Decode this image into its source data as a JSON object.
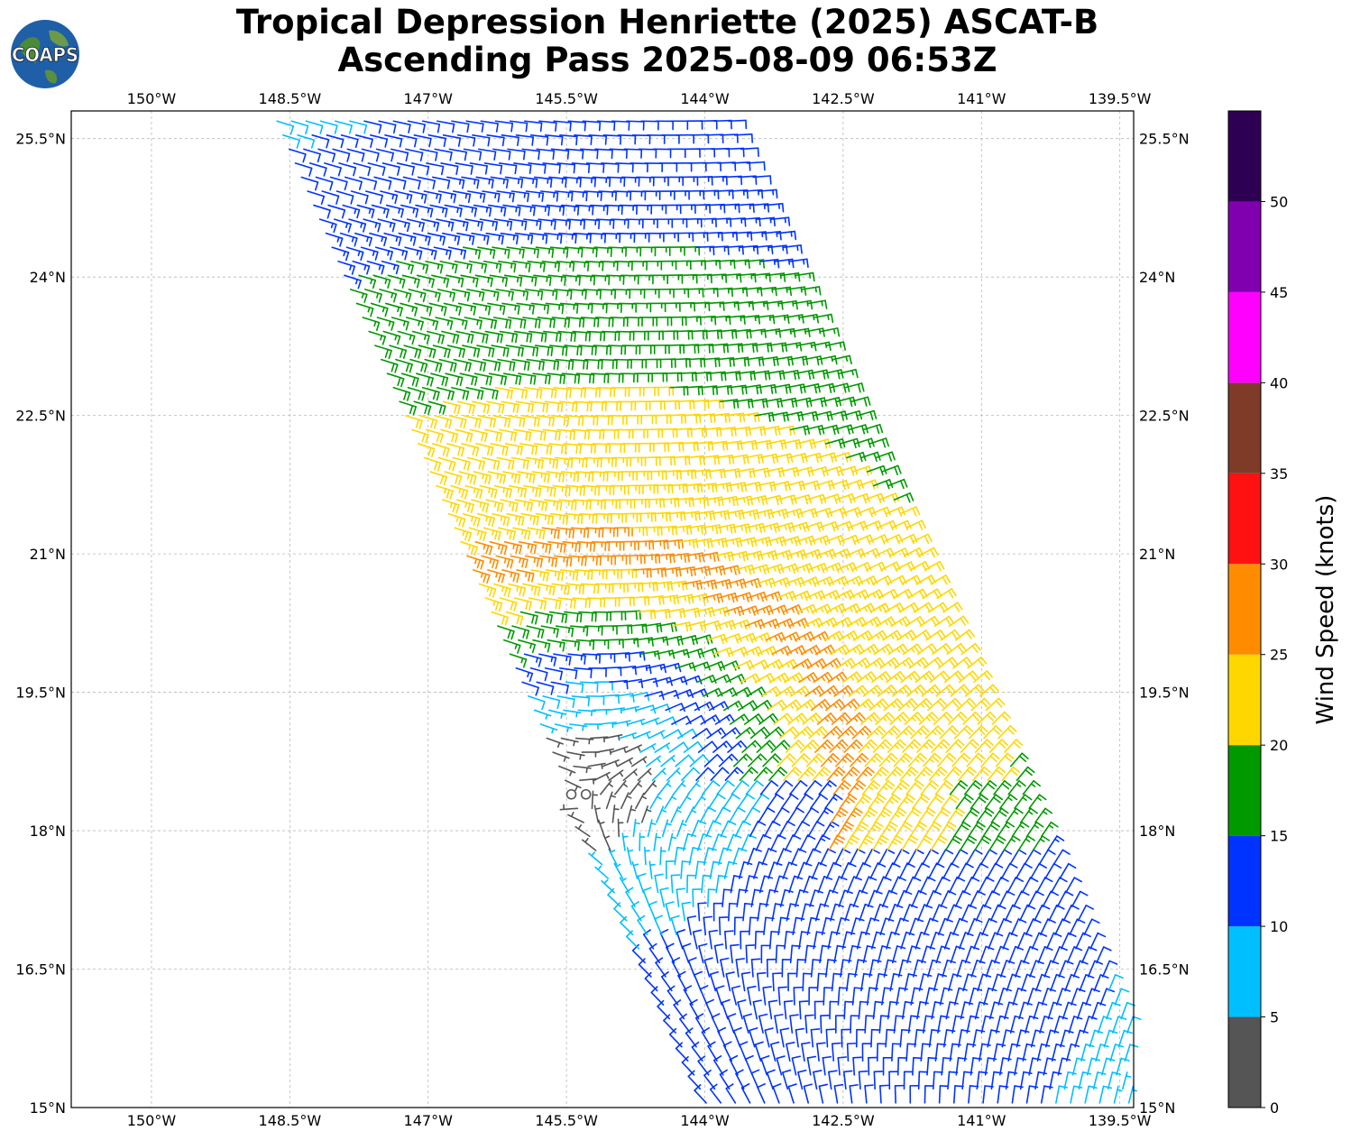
{
  "title": {
    "line1": "Tropical Depression Henriette (2025) ASCAT-B",
    "line2": "Ascending Pass 2025-08-09 06:53Z"
  },
  "logo": {
    "text": "COAPS",
    "icon": "globe-icon"
  },
  "map": {
    "lon_ticks": [
      "150°W",
      "148.5°W",
      "147°W",
      "145.5°W",
      "144°W",
      "142.5°W",
      "141°W",
      "139.5°W"
    ],
    "lon_values": [
      -150,
      -148.5,
      -147,
      -145.5,
      -144,
      -142.5,
      -141,
      -139.5
    ],
    "lat_ticks": [
      "15°N",
      "16.5°N",
      "18°N",
      "19.5°N",
      "21°N",
      "22.5°N",
      "24°N",
      "25.5°N"
    ],
    "lat_values": [
      15,
      16.5,
      18,
      19.5,
      21,
      22.5,
      24,
      25.5
    ],
    "lon_range": [
      -150.87,
      -139.35
    ],
    "lat_range": [
      15.0,
      25.8
    ],
    "grid": true,
    "center_estimate": {
      "lon": -145.4,
      "lat": 18.4
    }
  },
  "colorbar": {
    "label": "Wind Speed (knots)",
    "ticks": [
      "0",
      "5",
      "10",
      "15",
      "20",
      "25",
      "30",
      "35",
      "40",
      "45",
      "50"
    ],
    "bins": [
      {
        "min": 0,
        "max": 5,
        "color": "#555555"
      },
      {
        "min": 5,
        "max": 10,
        "color": "#00BFFF"
      },
      {
        "min": 10,
        "max": 15,
        "color": "#0033FF"
      },
      {
        "min": 15,
        "max": 20,
        "color": "#009900"
      },
      {
        "min": 20,
        "max": 25,
        "color": "#FFD700"
      },
      {
        "min": 25,
        "max": 30,
        "color": "#FF8C00"
      },
      {
        "min": 30,
        "max": 35,
        "color": "#FF1111"
      },
      {
        "min": 35,
        "max": 40,
        "color": "#7F3A28"
      },
      {
        "min": 40,
        "max": 45,
        "color": "#FF00FF"
      },
      {
        "min": 45,
        "max": 50,
        "color": "#8000B0"
      },
      {
        "min": 50,
        "max": 55,
        "color": "#2E0054"
      }
    ]
  }
}
